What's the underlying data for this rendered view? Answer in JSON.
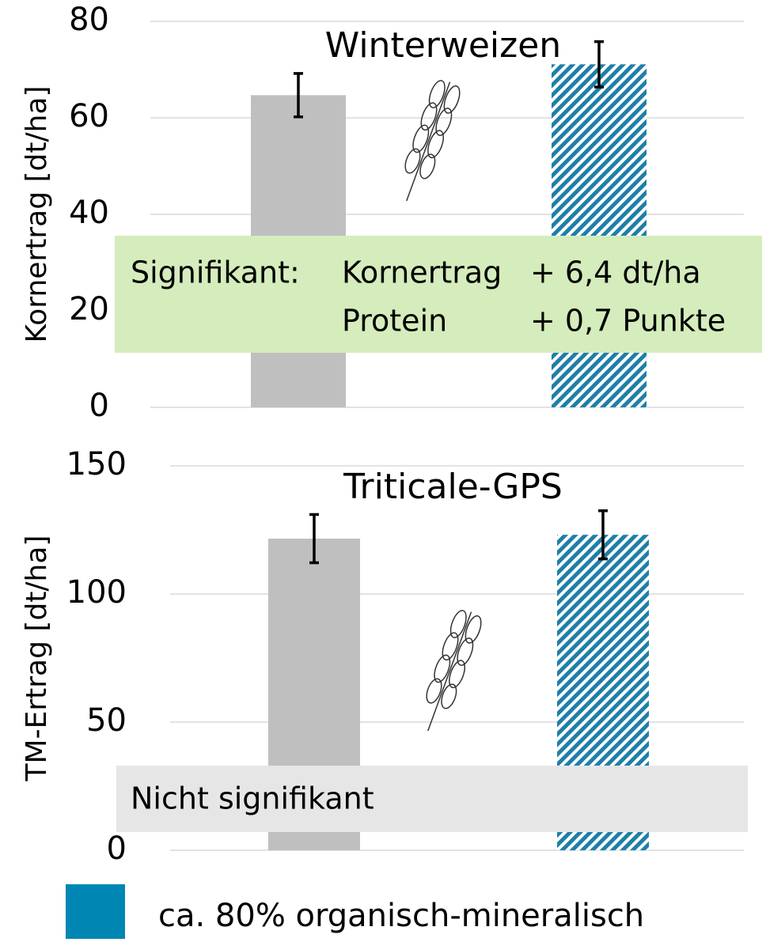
{
  "chart_data": [
    {
      "type": "bar",
      "title": "Winterweizen",
      "y_label": "Kornertrag [dt/ha]",
      "categories": [
        null,
        null
      ],
      "values": [
        64.7,
        71.1
      ],
      "errors": [
        4.5,
        4.7
      ],
      "colors": [
        "#bfbfbf",
        "#1f7fa8"
      ],
      "hatch": [
        false,
        true
      ],
      "ylim": [
        0,
        80
      ],
      "yticks": [
        0,
        20,
        40,
        60,
        80
      ],
      "grid": true,
      "annotation": {
        "label": "Signifikant:",
        "rows": [
          [
            "Kornertrag",
            "+ 6,4 dt/ha"
          ],
          [
            "Protein",
            "+ 0,7 Punkte"
          ]
        ],
        "box_color": "#d5ecbc"
      }
    },
    {
      "type": "bar",
      "title": "Triticale-GPS",
      "y_label": "TM-Ertrag [dt/ha]",
      "categories": [
        null,
        null
      ],
      "values": [
        121.6,
        123.1
      ],
      "errors": [
        9.4,
        9.4
      ],
      "colors": [
        "#bfbfbf",
        "#1f7fa8"
      ],
      "hatch": [
        false,
        true
      ],
      "ylim": [
        0,
        150
      ],
      "yticks": [
        0,
        50,
        100,
        150
      ],
      "grid": true,
      "annotation": {
        "label": "Nicht signifikant",
        "box_color": "#e6e6e6"
      }
    }
  ],
  "legend": {
    "label": "ca. 80% organisch-mineralisch",
    "color": "#0086b3"
  }
}
